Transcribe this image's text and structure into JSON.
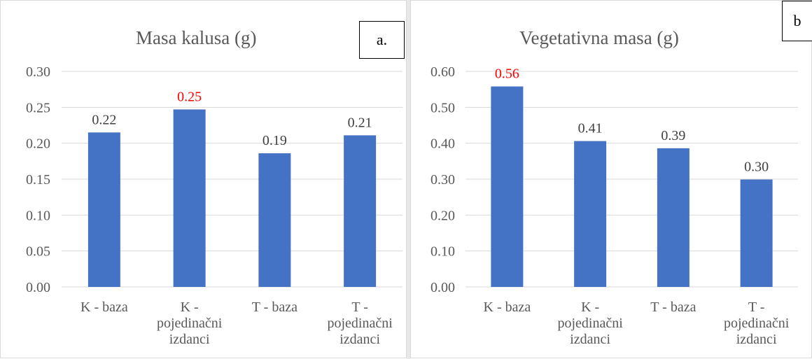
{
  "colors": {
    "bar": "#4472C4",
    "highlight_label": "#FF0000",
    "label": "#404040",
    "tick": "#595959",
    "grid": "#D9D9D9"
  },
  "chart_data": [
    {
      "type": "bar",
      "title": "Masa kalusa (g)",
      "panel_tag": "a.",
      "categories": [
        [
          "K - baza"
        ],
        [
          "K -",
          "pojedinačni",
          "izdanci"
        ],
        [
          "T -  baza"
        ],
        [
          "T -",
          "pojedinačni",
          "izdanci"
        ]
      ],
      "values": [
        0.215,
        0.247,
        0.186,
        0.211
      ],
      "data_labels": [
        "0.22",
        "0.25",
        "0.19",
        "0.21"
      ],
      "highlight_index": 1,
      "y_ticks": [
        "0.00",
        "0.05",
        "0.10",
        "0.15",
        "0.20",
        "0.25",
        "0.30"
      ],
      "ylim": [
        0,
        0.3
      ],
      "xlabel": "",
      "ylabel": "",
      "grid": true,
      "legend": "none"
    },
    {
      "type": "bar",
      "title": "Vegetativna masa (g)",
      "panel_tag": "b",
      "categories": [
        [
          "K - baza"
        ],
        [
          "K -",
          "pojedinačni",
          "izdanci"
        ],
        [
          "T -  baza"
        ],
        [
          "T -",
          "pojedinačni",
          "izdanci"
        ]
      ],
      "values": [
        0.558,
        0.406,
        0.386,
        0.299
      ],
      "data_labels": [
        "0.56",
        "0.41",
        "0.39",
        "0.30"
      ],
      "highlight_index": 0,
      "y_ticks": [
        "0.00",
        "0.10",
        "0.20",
        "0.30",
        "0.40",
        "0.50",
        "0.60"
      ],
      "ylim": [
        0,
        0.6
      ],
      "xlabel": "",
      "ylabel": "",
      "grid": true,
      "legend": "none"
    }
  ]
}
